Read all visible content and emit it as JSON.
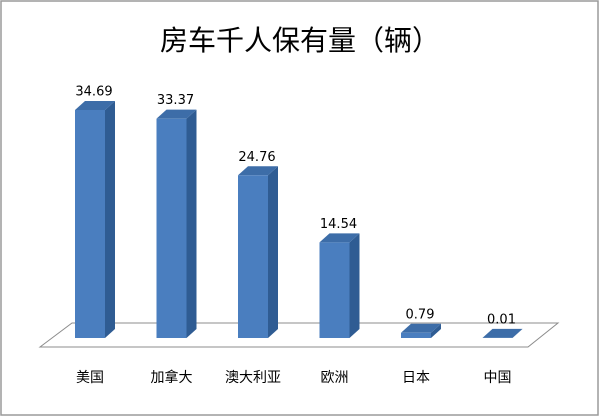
{
  "chart_data": {
    "type": "bar",
    "title": "房车千人保有量（辆）",
    "categories": [
      "美国",
      "加拿大",
      "澳大利亚",
      "欧洲",
      "日本",
      "中国"
    ],
    "values": [
      34.69,
      33.37,
      24.76,
      14.54,
      0.79,
      0.01
    ],
    "color": "#4a7ebf"
  }
}
